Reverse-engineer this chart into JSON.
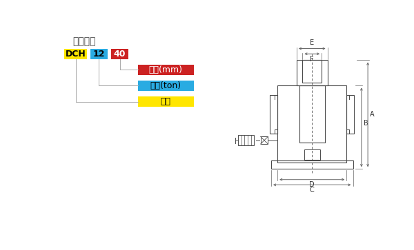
{
  "title": "型号说明",
  "bg_color": "#ffffff",
  "line_color": "#4a4a4a",
  "dim_line_color": "#666666",
  "box_yellow": "#FFE600",
  "box_blue": "#29ABE2",
  "box_red": "#CC2222",
  "label_dch": "DCH",
  "label_12": "12",
  "label_40": "40",
  "label_red": "行程(mm)",
  "label_blue": "载荷(ton)",
  "label_yellow": "型号"
}
